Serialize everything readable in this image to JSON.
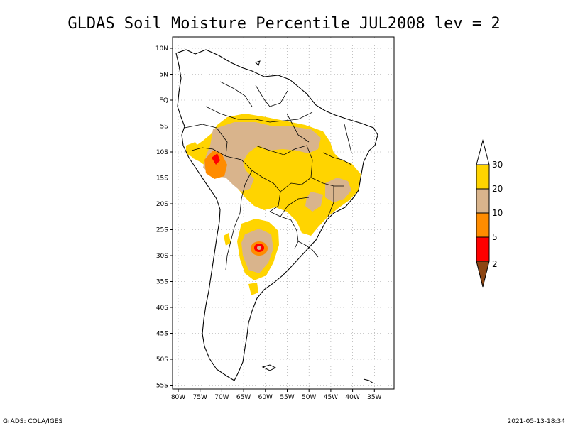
{
  "title": "GLDAS Soil Moisture Percentile JUL2008 lev = 2",
  "footer_left": "GrADS: COLA/IGES",
  "footer_right": "2021-05-13-18:34",
  "lat_ticks": [
    "10N",
    "5N",
    "EQ",
    "5S",
    "10S",
    "15S",
    "20S",
    "25S",
    "30S",
    "35S",
    "40S",
    "45S",
    "50S",
    "55S"
  ],
  "lon_ticks": [
    "80W",
    "75W",
    "70W",
    "65W",
    "60W",
    "55W",
    "50W",
    "45W",
    "40W",
    "35W"
  ],
  "colorbar": {
    "labels": [
      "30",
      "20",
      "10",
      "5",
      "2"
    ],
    "colors": {
      "above_30": "#ffffff",
      "20_30": "#ffd400",
      "10_20": "#d9b48c",
      "5_10": "#ff8c00",
      "2_5": "#ff0000",
      "below_2": "#8b4513"
    }
  }
}
